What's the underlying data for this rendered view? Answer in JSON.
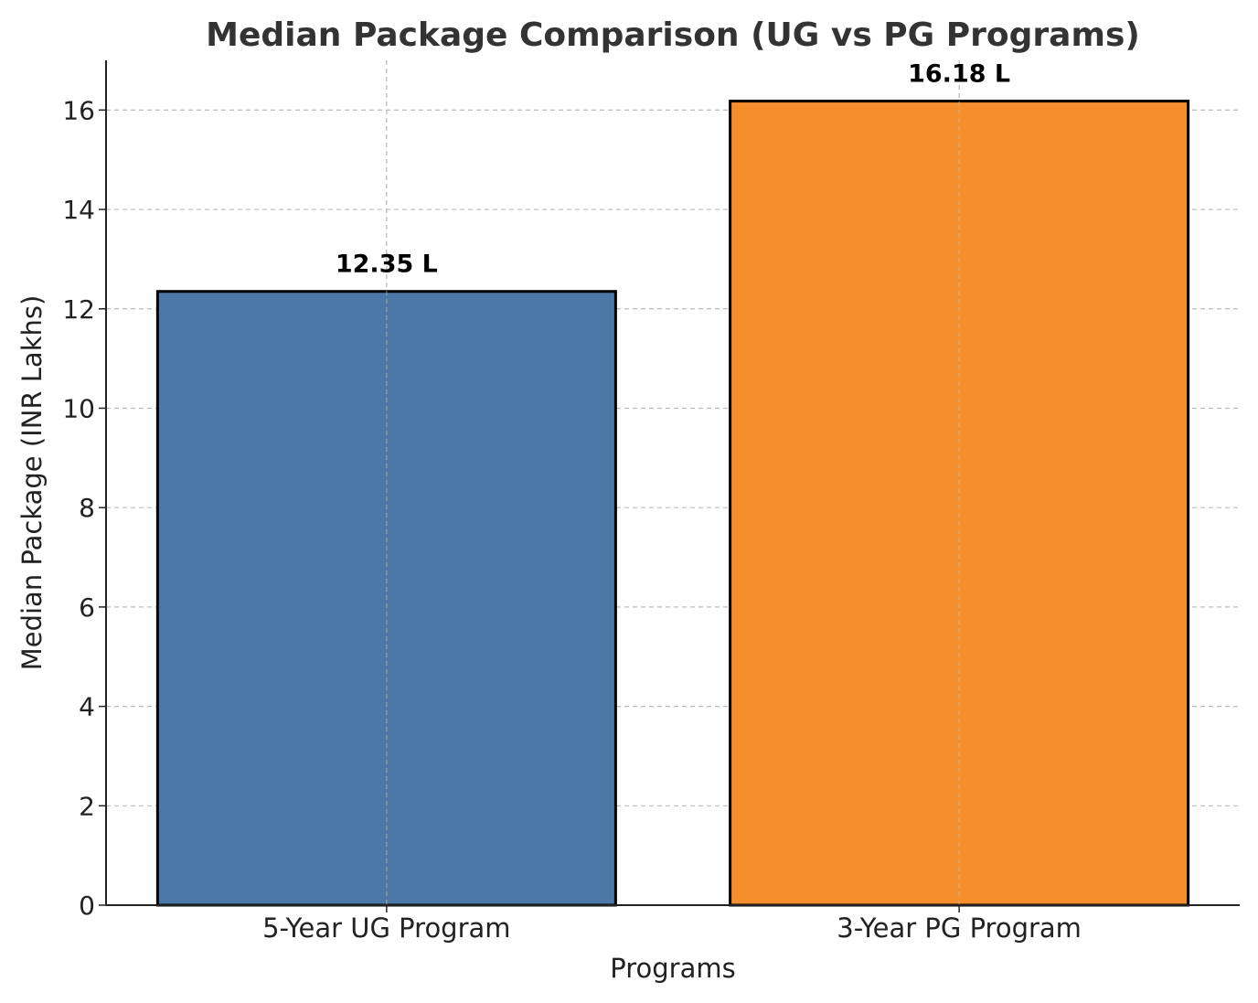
{
  "chart_data": {
    "type": "bar",
    "title": "Median Package Comparison (UG vs PG Programs)",
    "xlabel": "Programs",
    "ylabel": "Median Package (INR Lakhs)",
    "categories": [
      "5-Year UG Program",
      "3-Year PG Program"
    ],
    "values": [
      12.35,
      16.18
    ],
    "data_labels": [
      "12.35 L",
      "16.18 L"
    ],
    "colors": [
      "#4c78a8",
      "#f58f2d"
    ],
    "ylim": [
      0,
      17
    ],
    "yticks": [
      0,
      2,
      4,
      6,
      8,
      10,
      12,
      14,
      16
    ],
    "grid": true
  }
}
